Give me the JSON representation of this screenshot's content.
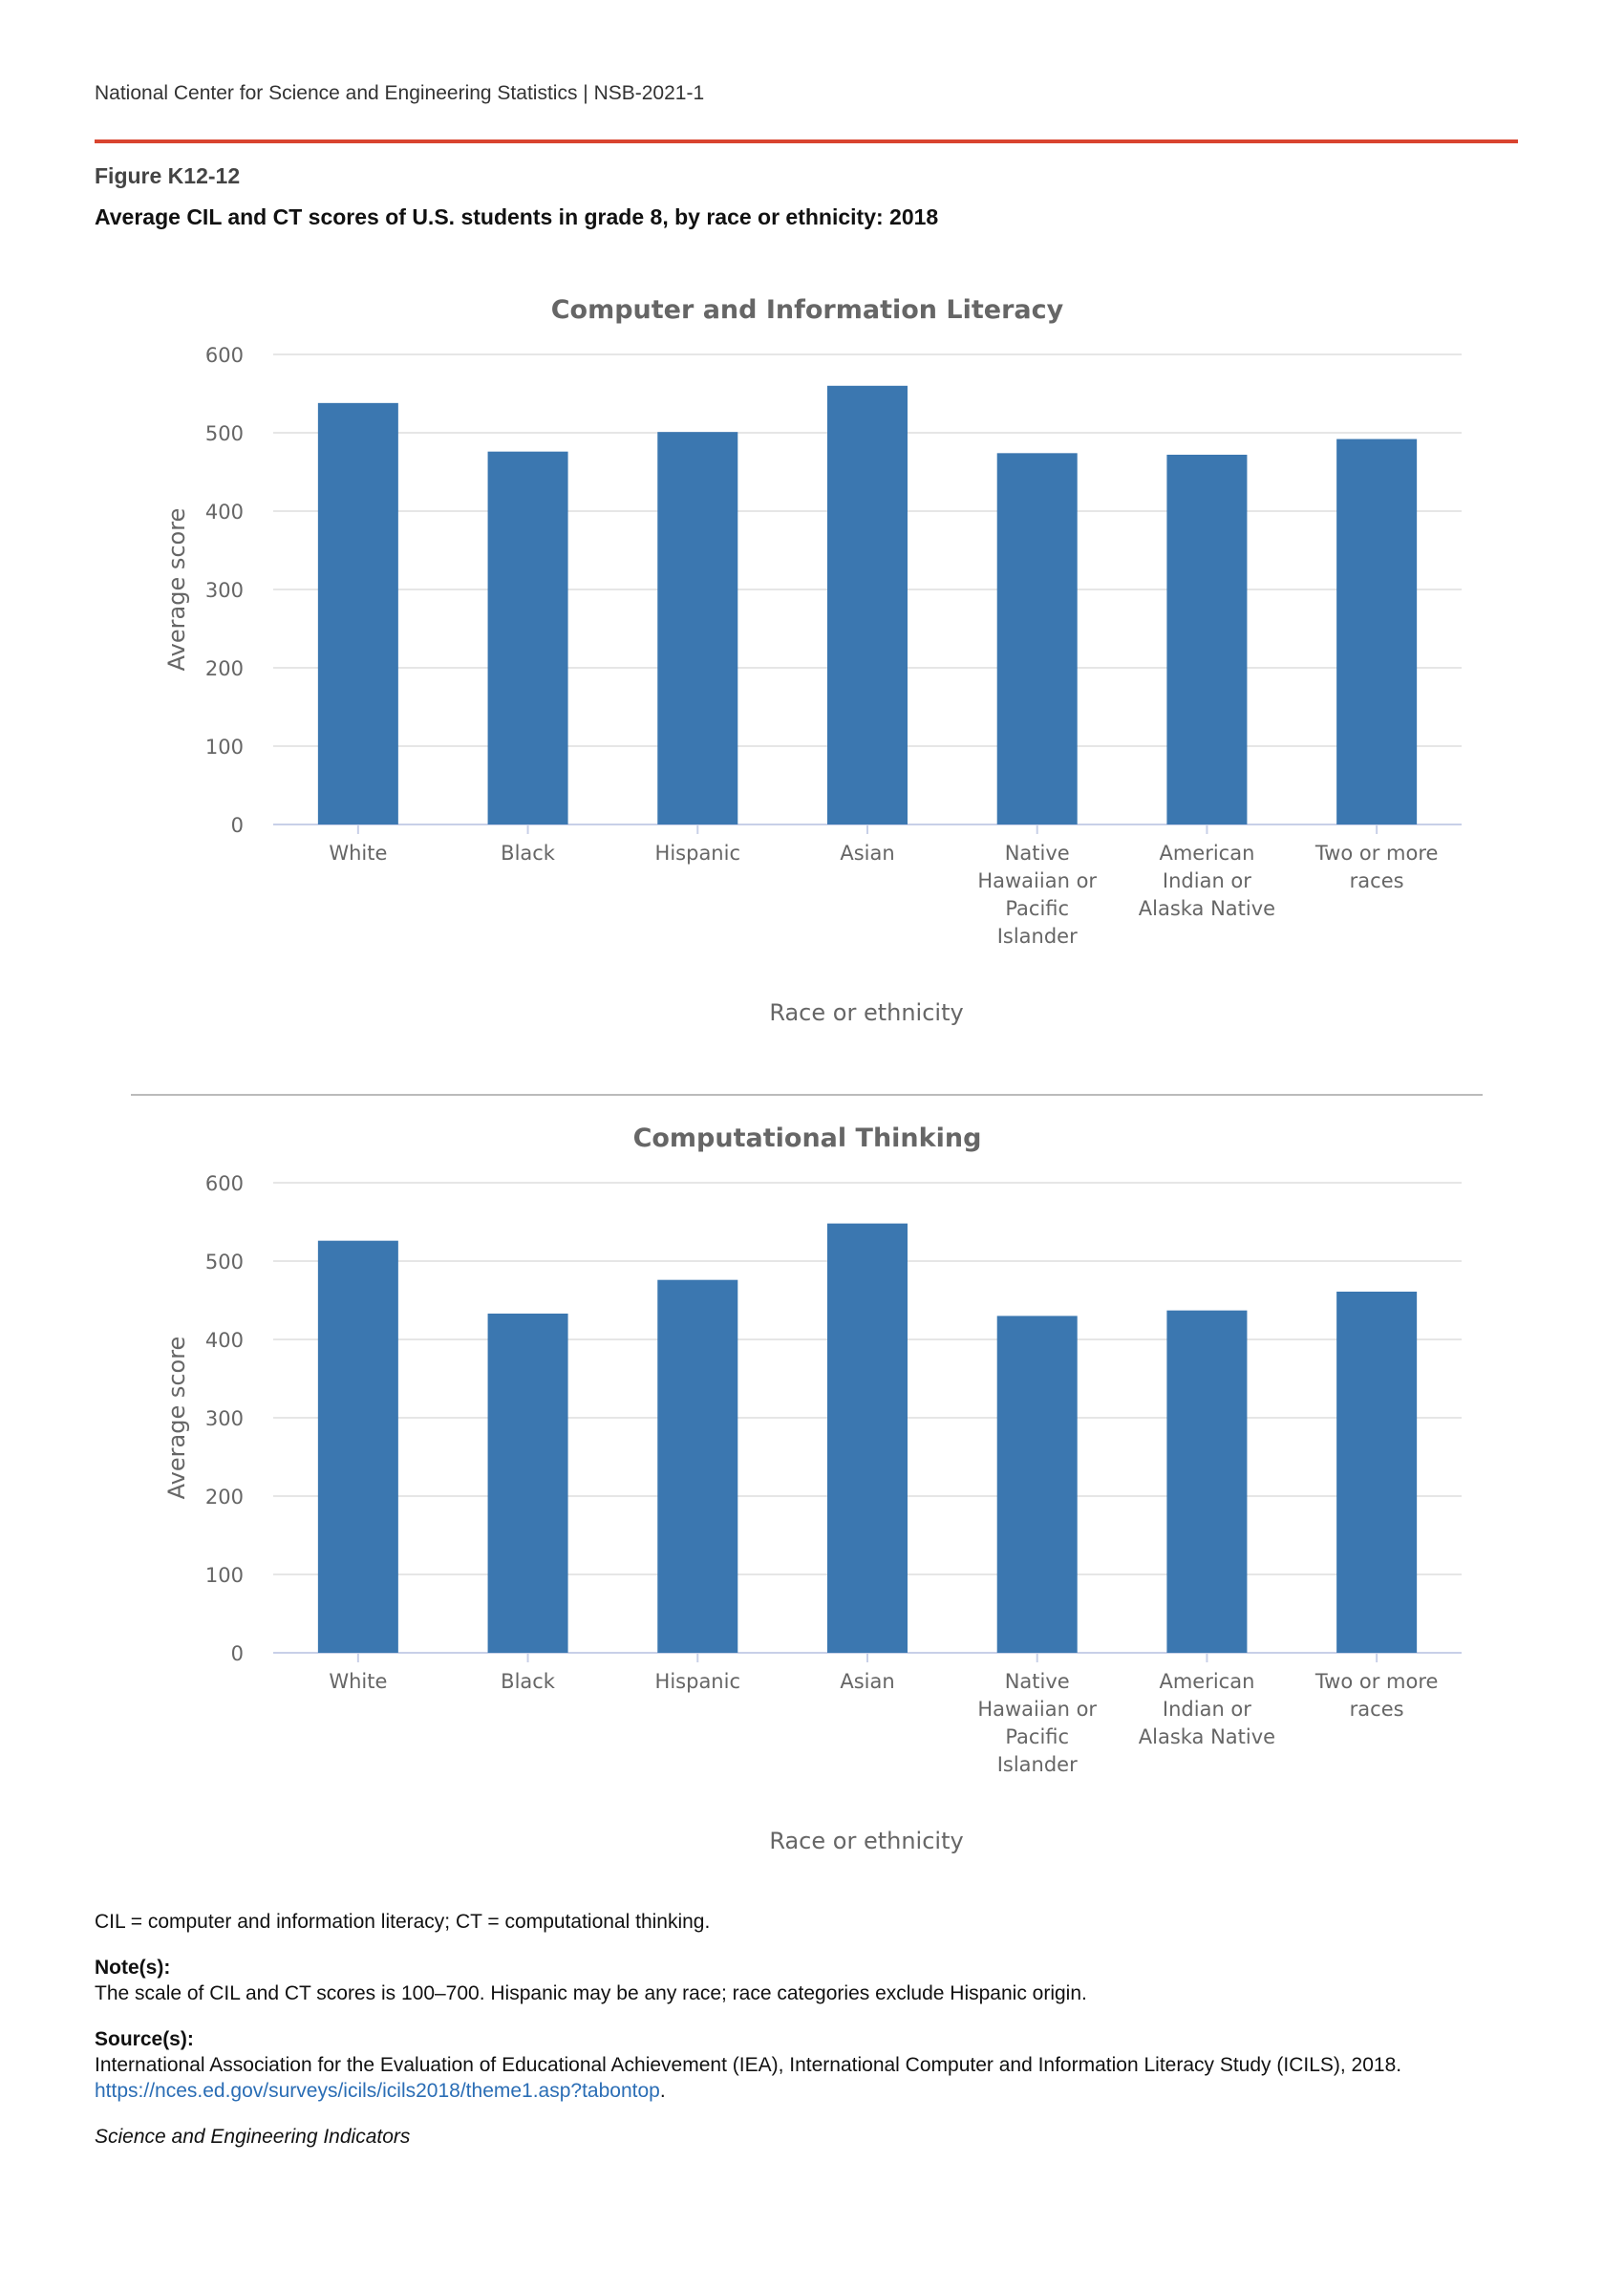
{
  "header": "National Center for Science and Engineering Statistics  |  NSB-2021-1",
  "figure_label": "Figure K12-12",
  "figure_title": "Average CIL and CT scores of U.S. students in grade 8, by race or ethnicity: 2018",
  "chart_data": [
    {
      "type": "bar",
      "title": "Computer and Information Literacy",
      "xlabel": "Race or ethnicity",
      "ylabel": "Average score",
      "ylim": [
        0,
        600
      ],
      "yticks": [
        0,
        100,
        200,
        300,
        400,
        500,
        600
      ],
      "categories": [
        [
          "White"
        ],
        [
          "Black"
        ],
        [
          "Hispanic"
        ],
        [
          "Asian"
        ],
        [
          "Native",
          "Hawaiian or",
          "Pacific",
          "Islander"
        ],
        [
          "American",
          "Indian or",
          "Alaska Native"
        ],
        [
          "Two or more",
          "races"
        ]
      ],
      "values": [
        538,
        476,
        501,
        560,
        474,
        472,
        492
      ],
      "color": "#3b77b0",
      "grid": true
    },
    {
      "type": "bar",
      "title": "Computational Thinking",
      "xlabel": "Race or ethnicity",
      "ylabel": "Average score",
      "ylim": [
        0,
        600
      ],
      "yticks": [
        0,
        100,
        200,
        300,
        400,
        500,
        600
      ],
      "categories": [
        [
          "White"
        ],
        [
          "Black"
        ],
        [
          "Hispanic"
        ],
        [
          "Asian"
        ],
        [
          "Native",
          "Hawaiian or",
          "Pacific",
          "Islander"
        ],
        [
          "American",
          "Indian or",
          "Alaska Native"
        ],
        [
          "Two or more",
          "races"
        ]
      ],
      "values": [
        526,
        433,
        476,
        548,
        430,
        437,
        461
      ],
      "color": "#3b77b0",
      "grid": true
    }
  ],
  "abbrev": "CIL = computer and information literacy; CT = computational thinking.",
  "notes_label": "Note(s):",
  "notes": "The scale of CIL and CT scores is 100–700. Hispanic may be any race; race categories exclude Hispanic origin.",
  "source_label": "Source(s):",
  "source": "International Association for the Evaluation of Educational Achievement (IEA), International Computer and Information Literacy Study (ICILS), 2018.",
  "source_link": "https://nces.ed.gov/surveys/icils/icils2018/theme1.asp?tabontop",
  "footer": "Science and Engineering Indicators"
}
